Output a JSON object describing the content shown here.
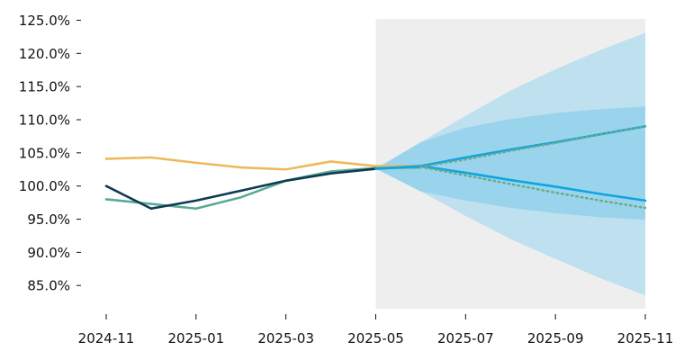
{
  "chart_data": {
    "type": "line",
    "title": "",
    "xlabel": "",
    "ylabel": "",
    "x_ticks": [
      "2024-11",
      "2025-01",
      "2025-03",
      "2025-05",
      "2025-07",
      "2025-09",
      "2025-11"
    ],
    "y_ticks": [
      85,
      90,
      95,
      100,
      105,
      110,
      115,
      120,
      125
    ],
    "y_tick_labels": [
      "85.0%",
      "90.0%",
      "95.0%",
      "100.0%",
      "105.0%",
      "110.0%",
      "115.0%",
      "120.0%",
      "125.0%"
    ],
    "xlim": [
      "2024-11",
      "2025-11"
    ],
    "ylim": [
      81.5,
      125.2
    ],
    "grid": false,
    "forecast_region": {
      "start": "2025-05",
      "end": "2025-11",
      "color": "#eeeeee"
    },
    "series": [
      {
        "style": "solid",
        "color": "#f0b85a",
        "points": [
          [
            "2024-11",
            104.1
          ],
          [
            "2024-12",
            104.3
          ],
          [
            "2025-01",
            103.5
          ],
          [
            "2025-02",
            102.8
          ],
          [
            "2025-03",
            102.5
          ],
          [
            "2025-04",
            103.7
          ],
          [
            "2025-05",
            103.0
          ],
          [
            "2025-06",
            103.0
          ]
        ]
      },
      {
        "style": "solid",
        "color": "#5aaa96",
        "points": [
          [
            "2024-11",
            98.0
          ],
          [
            "2024-12",
            97.3
          ],
          [
            "2025-01",
            96.6
          ],
          [
            "2025-02",
            98.3
          ],
          [
            "2025-03",
            100.8
          ],
          [
            "2025-04",
            102.2
          ],
          [
            "2025-05",
            102.7
          ],
          [
            "2025-06",
            102.8
          ]
        ]
      },
      {
        "style": "solid",
        "color": "#0e3a52",
        "points": [
          [
            "2024-11",
            100.0
          ],
          [
            "2024-12",
            96.6
          ],
          [
            "2025-01",
            97.8
          ],
          [
            "2025-02",
            99.3
          ],
          [
            "2025-03",
            100.8
          ],
          [
            "2025-04",
            101.9
          ],
          [
            "2025-05",
            102.6
          ]
        ]
      },
      {
        "style": "solid",
        "color": "#0ea5e0",
        "points": [
          [
            "2025-05",
            102.6
          ],
          [
            "2025-06",
            103.0
          ],
          [
            "2025-07",
            104.3
          ],
          [
            "2025-08",
            105.5
          ],
          [
            "2025-09",
            106.6
          ],
          [
            "2025-10",
            107.8
          ],
          [
            "2025-11",
            109.0
          ]
        ]
      },
      {
        "style": "solid",
        "color": "#0ea5e0",
        "points": [
          [
            "2025-05",
            102.6
          ],
          [
            "2025-06",
            103.0
          ],
          [
            "2025-07",
            102.0
          ],
          [
            "2025-08",
            100.9
          ],
          [
            "2025-09",
            99.9
          ],
          [
            "2025-10",
            98.8
          ],
          [
            "2025-11",
            97.8
          ]
        ]
      },
      {
        "style": "dotted",
        "color": "#6aaa8c",
        "points": [
          [
            "2025-06",
            102.9
          ],
          [
            "2025-07",
            104.0
          ],
          [
            "2025-08",
            105.3
          ],
          [
            "2025-09",
            106.5
          ],
          [
            "2025-10",
            107.8
          ],
          [
            "2025-11",
            109.0
          ]
        ]
      },
      {
        "style": "dotted",
        "color": "#6aaa8c",
        "points": [
          [
            "2025-06",
            102.9
          ],
          [
            "2025-07",
            101.6
          ],
          [
            "2025-08",
            100.3
          ],
          [
            "2025-09",
            99.0
          ],
          [
            "2025-10",
            97.8
          ],
          [
            "2025-11",
            96.7
          ]
        ]
      }
    ],
    "bands": [
      {
        "color": "#a6d8f0",
        "opacity": 0.65,
        "x": [
          "2025-05",
          "2025-06",
          "2025-07",
          "2025-08",
          "2025-09",
          "2025-10",
          "2025-11"
        ],
        "upper": [
          102.6,
          106.6,
          110.6,
          114.4,
          117.6,
          120.5,
          123.1
        ],
        "lower": [
          102.6,
          99.2,
          95.5,
          92.0,
          89.0,
          86.1,
          83.5
        ]
      },
      {
        "color": "#7ccaea",
        "opacity": 0.55,
        "x": [
          "2025-05",
          "2025-06",
          "2025-07",
          "2025-08",
          "2025-09",
          "2025-10",
          "2025-11"
        ],
        "upper": [
          102.6,
          106.6,
          108.8,
          110.1,
          111.0,
          111.6,
          112.0
        ],
        "lower": [
          102.6,
          99.2,
          97.8,
          96.7,
          95.9,
          95.3,
          94.9
        ]
      }
    ]
  }
}
